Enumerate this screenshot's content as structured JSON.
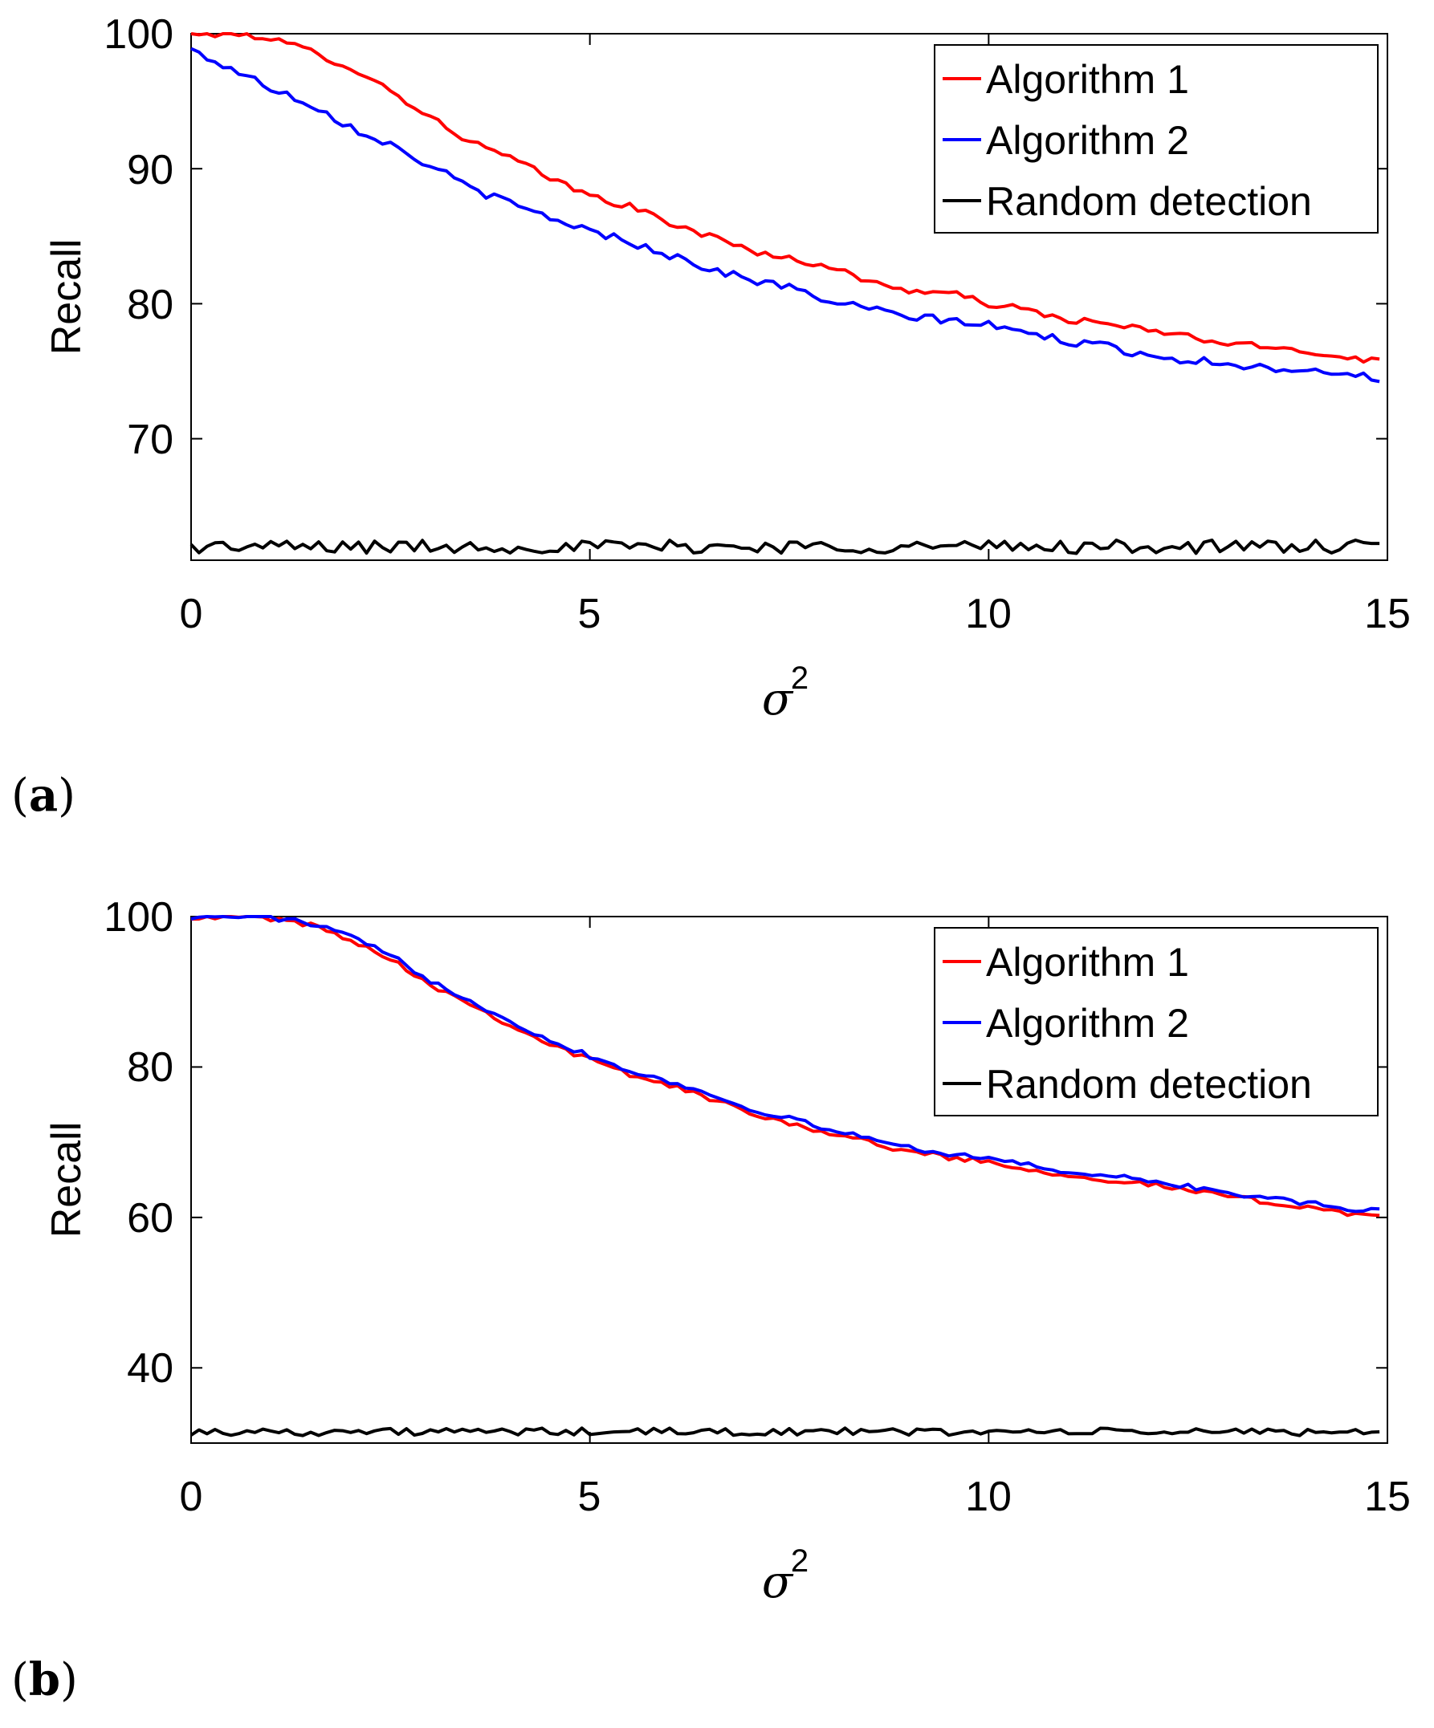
{
  "chart_data": [
    {
      "type": "line",
      "panel": "a",
      "title": "",
      "xlabel": "σ",
      "xlabel_superscript": "2",
      "ylabel": "Recall",
      "xlim": [
        0,
        15
      ],
      "ylim": [
        61,
        100
      ],
      "xticks": [
        0,
        5,
        10,
        15
      ],
      "yticks": [
        70,
        80,
        90,
        100
      ],
      "legend_position": "top-right",
      "grid": false,
      "series": [
        {
          "name": "Algorithm 1",
          "color": "#ff0000",
          "anchors": [
            [
              0,
              100
            ],
            [
              0.5,
              100
            ],
            [
              0.9,
              99.8
            ],
            [
              1.5,
              98.7
            ],
            [
              2.0,
              97.5
            ],
            [
              2.5,
              95.8
            ],
            [
              3.0,
              93.8
            ],
            [
              3.5,
              92.0
            ],
            [
              4.0,
              90.8
            ],
            [
              4.5,
              89.3
            ],
            [
              5.0,
              88.0
            ],
            [
              5.5,
              87.2
            ],
            [
              6.0,
              86.0
            ],
            [
              6.5,
              85.0
            ],
            [
              7.0,
              84.0
            ],
            [
              7.5,
              83.3
            ],
            [
              8.0,
              82.8
            ],
            [
              8.5,
              81.6
            ],
            [
              9.0,
              81.0
            ],
            [
              9.5,
              80.8
            ],
            [
              10.0,
              80.0
            ],
            [
              10.5,
              79.5
            ],
            [
              11.0,
              78.8
            ],
            [
              11.5,
              78.5
            ],
            [
              12.0,
              78.0
            ],
            [
              12.5,
              77.6
            ],
            [
              13.0,
              77.0
            ],
            [
              13.5,
              76.8
            ],
            [
              14.0,
              76.5
            ],
            [
              14.5,
              76.0
            ],
            [
              14.9,
              75.8
            ]
          ],
          "noise": 0.25
        },
        {
          "name": "Algorithm 2",
          "color": "#0000ff",
          "anchors": [
            [
              0,
              98.8
            ],
            [
              0.5,
              97.4
            ],
            [
              1.0,
              96.0
            ],
            [
              1.5,
              94.8
            ],
            [
              2.0,
              93.1
            ],
            [
              2.5,
              91.8
            ],
            [
              3.0,
              90.2
            ],
            [
              3.5,
              88.6
            ],
            [
              4.0,
              87.4
            ],
            [
              4.5,
              86.4
            ],
            [
              5.0,
              85.4
            ],
            [
              5.5,
              84.6
            ],
            [
              6.0,
              83.6
            ],
            [
              6.5,
              82.6
            ],
            [
              7.0,
              81.8
            ],
            [
              7.5,
              81.2
            ],
            [
              8.0,
              80.2
            ],
            [
              8.5,
              79.6
            ],
            [
              9.0,
              79.0
            ],
            [
              9.5,
              78.8
            ],
            [
              10.0,
              78.4
            ],
            [
              10.5,
              77.8
            ],
            [
              11.0,
              77.2
            ],
            [
              11.5,
              76.8
            ],
            [
              12.0,
              76.2
            ],
            [
              12.5,
              75.8
            ],
            [
              13.0,
              75.6
            ],
            [
              13.5,
              75.2
            ],
            [
              14.0,
              75.2
            ],
            [
              14.5,
              74.8
            ],
            [
              14.9,
              74.4
            ]
          ],
          "noise": 0.3
        },
        {
          "name": "Random detection",
          "color": "#000000",
          "anchors": [
            [
              0,
              62.0
            ],
            [
              15,
              62.0
            ]
          ],
          "noise": 0.5
        }
      ]
    },
    {
      "type": "line",
      "panel": "b",
      "title": "",
      "xlabel": "σ",
      "xlabel_superscript": "2",
      "ylabel": "Recall",
      "xlim": [
        0,
        15
      ],
      "ylim": [
        30,
        100
      ],
      "xticks": [
        0,
        5,
        10,
        15
      ],
      "yticks": [
        40,
        60,
        80,
        100
      ],
      "legend_position": "top-right",
      "grid": false,
      "series": [
        {
          "name": "Algorithm 1",
          "color": "#ff0000",
          "anchors": [
            [
              0,
              100
            ],
            [
              0.8,
              100
            ],
            [
              1.2,
              99.5
            ],
            [
              1.6,
              98.6
            ],
            [
              2.0,
              97.0
            ],
            [
              2.5,
              94.4
            ],
            [
              3.0,
              91.0
            ],
            [
              3.5,
              88.4
            ],
            [
              4.0,
              85.6
            ],
            [
              4.5,
              83.0
            ],
            [
              5.0,
              81.0
            ],
            [
              5.5,
              79.0
            ],
            [
              6.0,
              77.6
            ],
            [
              6.5,
              75.8
            ],
            [
              7.0,
              74.0
            ],
            [
              7.5,
              72.6
            ],
            [
              8.0,
              71.2
            ],
            [
              8.5,
              70.0
            ],
            [
              9.0,
              68.8
            ],
            [
              9.5,
              68.0
            ],
            [
              10.0,
              67.4
            ],
            [
              10.5,
              66.4
            ],
            [
              11.0,
              65.6
            ],
            [
              11.5,
              65.0
            ],
            [
              12.0,
              64.4
            ],
            [
              12.5,
              63.6
            ],
            [
              13.0,
              62.8
            ],
            [
              13.5,
              62.0
            ],
            [
              14.0,
              61.4
            ],
            [
              14.5,
              60.6
            ],
            [
              14.9,
              60.3
            ]
          ],
          "noise": 0.35
        },
        {
          "name": "Algorithm 2",
          "color": "#0000ff",
          "anchors": [
            [
              0,
              100
            ],
            [
              0.8,
              100
            ],
            [
              1.2,
              99.6
            ],
            [
              1.6,
              98.8
            ],
            [
              2.0,
              97.3
            ],
            [
              2.5,
              94.8
            ],
            [
              3.0,
              91.5
            ],
            [
              3.5,
              88.9
            ],
            [
              4.0,
              86.1
            ],
            [
              4.5,
              83.5
            ],
            [
              5.0,
              81.5
            ],
            [
              5.5,
              79.5
            ],
            [
              6.0,
              78.1
            ],
            [
              6.5,
              76.3
            ],
            [
              7.0,
              74.5
            ],
            [
              7.5,
              73.1
            ],
            [
              8.0,
              71.7
            ],
            [
              8.5,
              70.5
            ],
            [
              9.0,
              69.3
            ],
            [
              9.5,
              68.5
            ],
            [
              10.0,
              67.9
            ],
            [
              10.5,
              66.9
            ],
            [
              11.0,
              66.1
            ],
            [
              11.5,
              65.5
            ],
            [
              12.0,
              64.9
            ],
            [
              12.5,
              64.1
            ],
            [
              13.0,
              63.3
            ],
            [
              13.5,
              62.5
            ],
            [
              14.0,
              61.9
            ],
            [
              14.5,
              61.1
            ],
            [
              14.9,
              60.8
            ]
          ],
          "noise": 0.35
        },
        {
          "name": "Random detection",
          "color": "#000000",
          "anchors": [
            [
              0,
              31.5
            ],
            [
              15,
              31.5
            ]
          ],
          "noise": 0.5
        }
      ]
    }
  ],
  "panel_labels": [
    "(a)",
    "(b)"
  ],
  "panel_letters": [
    "a",
    "b"
  ]
}
